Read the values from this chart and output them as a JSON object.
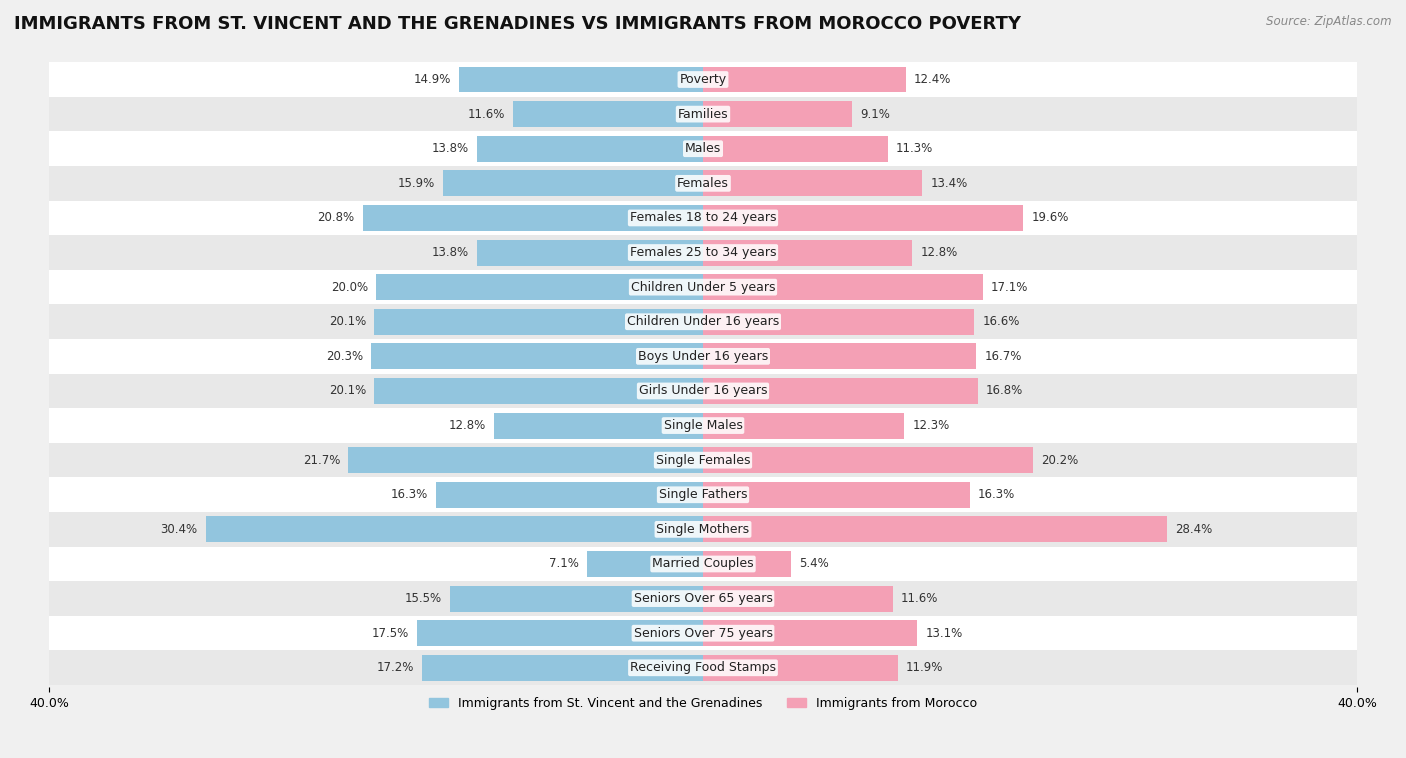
{
  "title": "IMMIGRANTS FROM ST. VINCENT AND THE GRENADINES VS IMMIGRANTS FROM MOROCCO POVERTY",
  "source": "Source: ZipAtlas.com",
  "categories": [
    "Poverty",
    "Families",
    "Males",
    "Females",
    "Females 18 to 24 years",
    "Females 25 to 34 years",
    "Children Under 5 years",
    "Children Under 16 years",
    "Boys Under 16 years",
    "Girls Under 16 years",
    "Single Males",
    "Single Females",
    "Single Fathers",
    "Single Mothers",
    "Married Couples",
    "Seniors Over 65 years",
    "Seniors Over 75 years",
    "Receiving Food Stamps"
  ],
  "left_values": [
    14.9,
    11.6,
    13.8,
    15.9,
    20.8,
    13.8,
    20.0,
    20.1,
    20.3,
    20.1,
    12.8,
    21.7,
    16.3,
    30.4,
    7.1,
    15.5,
    17.5,
    17.2
  ],
  "right_values": [
    12.4,
    9.1,
    11.3,
    13.4,
    19.6,
    12.8,
    17.1,
    16.6,
    16.7,
    16.8,
    12.3,
    20.2,
    16.3,
    28.4,
    5.4,
    11.6,
    13.1,
    11.9
  ],
  "left_color": "#92c5de",
  "right_color": "#f4a0b5",
  "left_label": "Immigrants from St. Vincent and the Grenadines",
  "right_label": "Immigrants from Morocco",
  "xlim": 40.0,
  "background_color": "#f0f0f0",
  "bar_background_odd": "#ffffff",
  "bar_background_even": "#e8e8e8",
  "title_fontsize": 13,
  "axis_fontsize": 9,
  "label_fontsize": 9,
  "value_fontsize": 8.5
}
